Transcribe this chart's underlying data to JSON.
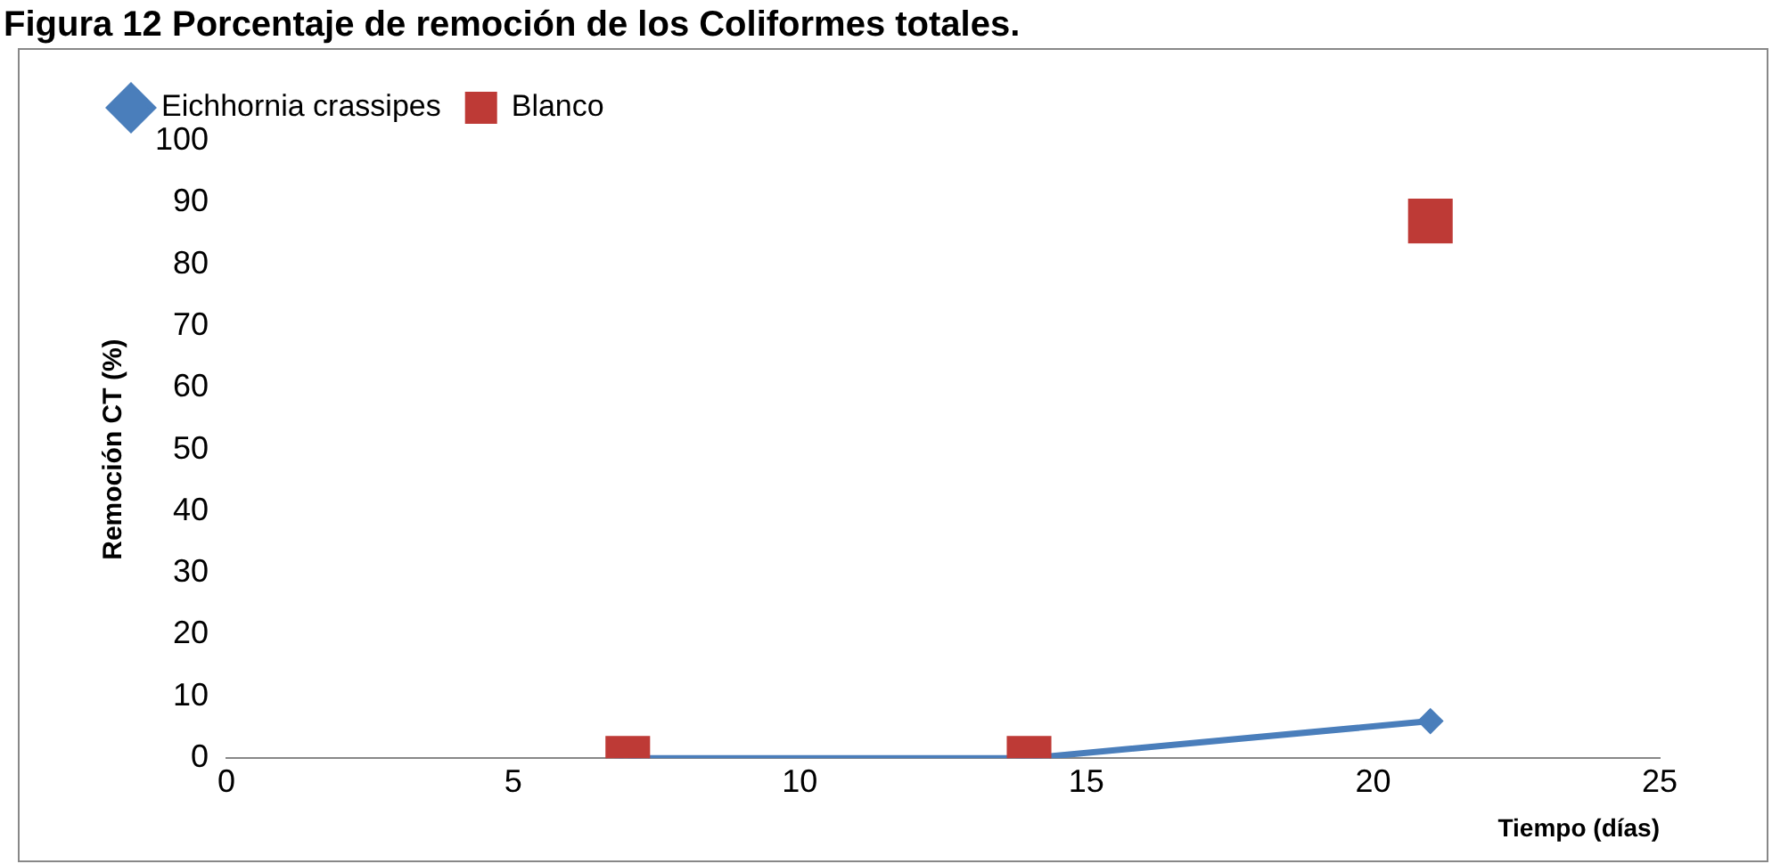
{
  "chart_data": {
    "type": "line",
    "title": "Figura 12 Porcentaje de remoción de los Coliformes totales.",
    "xlabel": "Tiempo (días)",
    "ylabel": "Remoción CT (%)",
    "series": [
      {
        "name": "Eichhornia crassipes",
        "color": "#4a7ebb",
        "x": [
          7,
          14,
          21
        ],
        "values": [
          0,
          0,
          6
        ],
        "marker": "diamond"
      },
      {
        "name": "Blanco",
        "type": "scatter",
        "color": "#be3a36",
        "x": [
          7,
          14,
          21
        ],
        "values": [
          0,
          0,
          87
        ],
        "marker": "square"
      }
    ],
    "xlim": [
      0,
      25
    ],
    "xticks": [
      0,
      5,
      10,
      15,
      20,
      25
    ],
    "ylim": [
      0,
      100
    ],
    "yticks": [
      0,
      10,
      20,
      30,
      40,
      50,
      60,
      70,
      80,
      90,
      100
    ],
    "grid": false,
    "legend": "top"
  }
}
